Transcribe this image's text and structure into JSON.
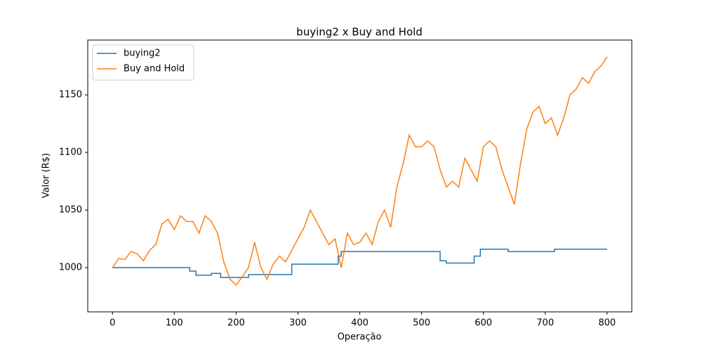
{
  "chart_data": {
    "type": "line",
    "title": "buying2 x Buy and Hold",
    "x_label": "Operação",
    "y_label": "Valor (R$)",
    "xlim": [
      -40,
      840
    ],
    "ylim": [
      961.6,
      1197.6
    ],
    "xticks": [
      0,
      100,
      200,
      300,
      400,
      500,
      600,
      700,
      800
    ],
    "yticks": [
      1000,
      1050,
      1100,
      1150
    ],
    "legend": "upper left",
    "series": [
      {
        "name": "buying2",
        "color": "#1f77b4",
        "x": [
          0,
          125,
          125,
          135,
          135,
          160,
          160,
          175,
          175,
          220,
          220,
          290,
          290,
          365,
          365,
          370,
          370,
          530,
          530,
          540,
          540,
          585,
          585,
          595,
          595,
          640,
          640,
          715,
          715,
          800
        ],
        "values": [
          1000,
          1000,
          997,
          997,
          993.5,
          993.5,
          995,
          995,
          991.5,
          991.5,
          994,
          994,
          1003,
          1003,
          1010,
          1010,
          1014,
          1014,
          1006,
          1006,
          1004,
          1004,
          1010,
          1010,
          1016,
          1016,
          1014,
          1014,
          1016,
          1016
        ]
      },
      {
        "name": "Buy and Hold",
        "color": "#ff7f0e",
        "x": [
          0,
          10,
          20,
          30,
          40,
          50,
          60,
          70,
          80,
          90,
          100,
          110,
          120,
          130,
          140,
          150,
          160,
          170,
          180,
          190,
          200,
          210,
          220,
          230,
          240,
          250,
          260,
          270,
          280,
          290,
          300,
          310,
          320,
          330,
          340,
          350,
          360,
          370,
          380,
          390,
          400,
          410,
          420,
          430,
          440,
          450,
          460,
          470,
          480,
          490,
          500,
          510,
          520,
          530,
          540,
          550,
          560,
          570,
          580,
          590,
          600,
          610,
          620,
          630,
          640,
          650,
          660,
          670,
          680,
          690,
          700,
          710,
          720,
          730,
          740,
          750,
          760,
          770,
          780,
          790,
          800
        ],
        "values": [
          1000,
          1008,
          1007,
          1014,
          1012,
          1006,
          1015,
          1020,
          1038,
          1042,
          1033,
          1045,
          1040,
          1040,
          1030,
          1045,
          1040,
          1030,
          1005,
          990,
          985,
          992,
          1000,
          1022,
          1000,
          990,
          1003,
          1010,
          1005,
          1015,
          1025,
          1035,
          1050,
          1040,
          1030,
          1020,
          1025,
          1000,
          1030,
          1020,
          1022,
          1030,
          1020,
          1040,
          1050,
          1035,
          1070,
          1090,
          1115,
          1105,
          1105,
          1110,
          1105,
          1085,
          1070,
          1075,
          1070,
          1095,
          1085,
          1075,
          1105,
          1110,
          1105,
          1085,
          1070,
          1055,
          1090,
          1120,
          1135,
          1140,
          1125,
          1130,
          1115,
          1130,
          1150,
          1155,
          1165,
          1160,
          1170,
          1175,
          1183
        ]
      }
    ]
  }
}
